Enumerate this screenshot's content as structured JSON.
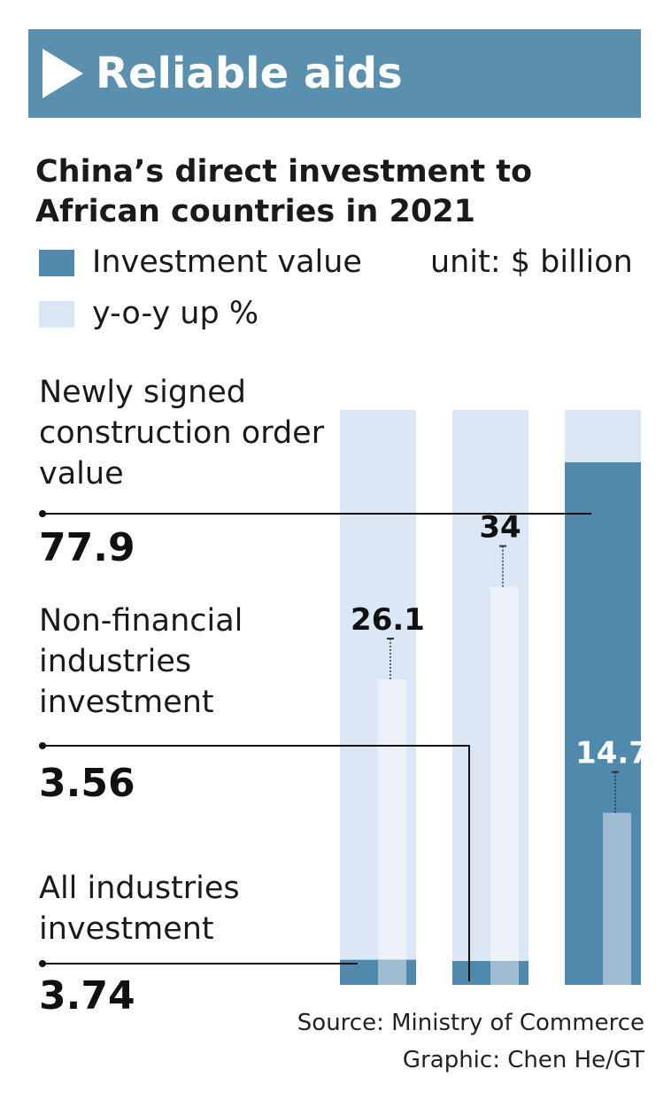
{
  "banner": {
    "title": "Reliable aids",
    "arrow_icon": "play-triangle-icon"
  },
  "subtitle": "China’s direct investment to African countries in 2021",
  "legend": {
    "items": [
      {
        "label": "Investment value",
        "color": "#4f89ac"
      },
      {
        "label": "y-o-y up %",
        "color": "#dbe7f4"
      }
    ],
    "unit": "unit: $ billion"
  },
  "categories": [
    {
      "label": "Newly signed construction order value",
      "value": "77.9"
    },
    {
      "label": "Non-financial industries investment",
      "value": "3.56"
    },
    {
      "label": "All industries investment",
      "value": "3.74"
    }
  ],
  "chart_data": {
    "type": "bar",
    "title": "China’s direct investment to African countries in 2021",
    "unit": "$ billion",
    "categories": [
      "All industries investment",
      "Non-financial industries investment",
      "Newly signed construction order value"
    ],
    "series": [
      {
        "name": "Investment value",
        "values": [
          3.74,
          3.56,
          77.9
        ]
      },
      {
        "name": "y-o-y up %",
        "values": [
          26.1,
          34,
          14.7
        ]
      }
    ],
    "value_labels": [
      "26.1",
      "34",
      "14.7"
    ],
    "colors": {
      "investment": "#4f89ac",
      "background": "#dbe7f4",
      "yoy": "#edf2fa",
      "yoy_overlap": "#a0bcd3"
    }
  },
  "source": {
    "source_line": "Source: Ministry of Commerce",
    "graphic_line": "Graphic: Chen He/GT"
  }
}
